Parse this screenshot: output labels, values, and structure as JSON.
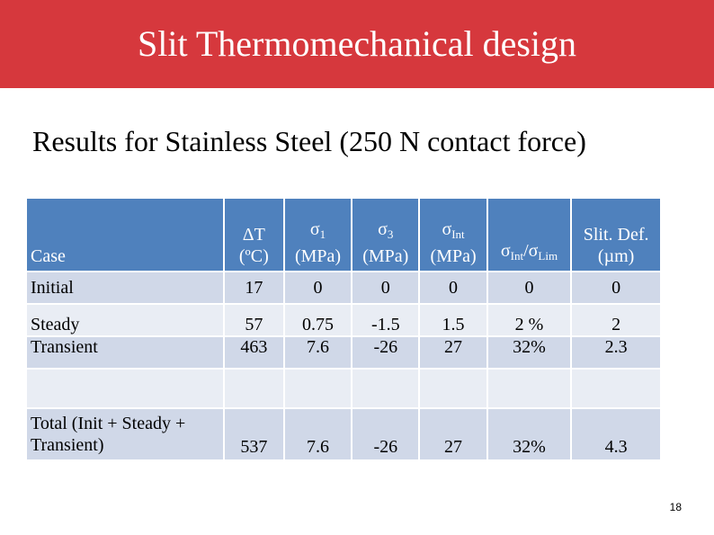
{
  "title": "Slit Thermomechanical design",
  "subtitle": "Results for Stainless Steel (250 N contact force)",
  "table": {
    "headers": {
      "case": "Case",
      "dt_symbol": "ΔT",
      "dt_unit": "(ºC)",
      "s1_sym": "σ",
      "s1_sub": "1",
      "s1_unit": "(MPa)",
      "s3_sym": "σ",
      "s3_sub": "3",
      "s3_unit": "(MPa)",
      "sint_sym": "σ",
      "sint_sub": "Int",
      "sint_unit": "(MPa)",
      "ratio_sym_a": "σ",
      "ratio_sub_a": "Int",
      "ratio_slash": "/σ",
      "ratio_sub_b": "Lim",
      "def_label": "Slit. Def.",
      "def_unit": "(µm)"
    },
    "rows": [
      {
        "case": "Initial",
        "dt": "17",
        "s1": "0",
        "s3": "0",
        "sint": "0",
        "ratio": "0",
        "def": "0"
      },
      {
        "case": "Steady",
        "dt": "57",
        "s1": "0.75",
        "s3": "-1.5",
        "sint": "1.5",
        "ratio": "2 %",
        "def": "2"
      },
      {
        "case": "Transient",
        "dt": "463",
        "s1": "7.6",
        "s3": "-26",
        "sint": "27",
        "ratio": "32%",
        "def": "2.3"
      },
      {
        "case": "",
        "dt": "",
        "s1": "",
        "s3": "",
        "sint": "",
        "ratio": "",
        "def": ""
      },
      {
        "case": "Total (Init + Steady + Transient)",
        "dt": "537",
        "s1": "7.6",
        "s3": "-26",
        "sint": "27",
        "ratio": "32%",
        "def": "4.3"
      }
    ]
  },
  "page_number": "18",
  "colors": {
    "title_bar": "#d6383d",
    "header": "#4f81bd",
    "row_dark": "#d0d8e8",
    "row_light": "#e9edf4"
  }
}
